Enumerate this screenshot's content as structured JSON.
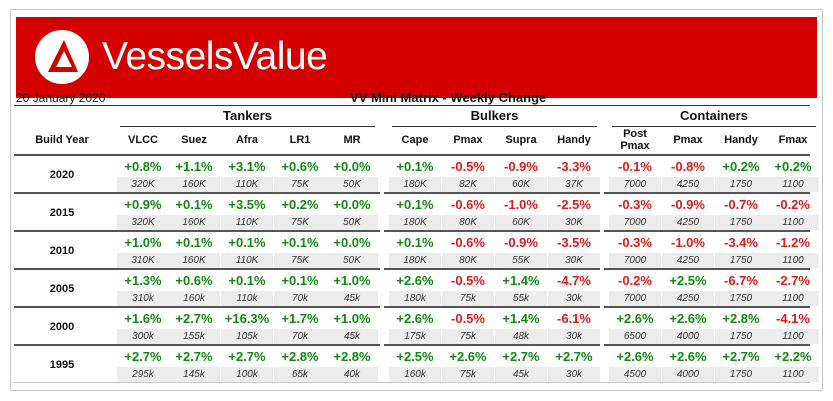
{
  "brand": "VesselsValue",
  "date": "20 January 2020",
  "title": "VV Mini Matrix - Weekly Change",
  "row_header": "Build Year",
  "groups": [
    {
      "label": "Tankers",
      "columns": [
        "VLCC",
        "Suez",
        "Afra",
        "LR1",
        "MR"
      ]
    },
    {
      "label": "Bulkers",
      "columns": [
        "Cape",
        "Pmax",
        "Supra",
        "Handy"
      ]
    },
    {
      "label": "Containers",
      "columns": [
        "Post Pmax",
        "Pmax",
        "Handy",
        "Fmax"
      ]
    }
  ],
  "rows": [
    {
      "year": "2020",
      "changes": [
        "+0.8%",
        "+1.1%",
        "+3.1%",
        "+0.6%",
        "+0.0%",
        "+0.1%",
        "-0.5%",
        "-0.9%",
        "-3.3%",
        "-0.1%",
        "-0.8%",
        "+0.2%",
        "+0.2%"
      ],
      "sizes": [
        "320K",
        "160K",
        "110K",
        "75K",
        "50K",
        "180K",
        "82K",
        "60K",
        "37K",
        "7000",
        "4250",
        "1750",
        "1100"
      ]
    },
    {
      "year": "2015",
      "changes": [
        "+0.9%",
        "+0.1%",
        "+3.5%",
        "+0.2%",
        "+0.0%",
        "+0.1%",
        "-0.6%",
        "-1.0%",
        "-2.5%",
        "-0.3%",
        "-0.9%",
        "-0.7%",
        "-0.2%"
      ],
      "sizes": [
        "320K",
        "160K",
        "110K",
        "75K",
        "50K",
        "180K",
        "80K",
        "60K",
        "30K",
        "7000",
        "4250",
        "1750",
        "1100"
      ]
    },
    {
      "year": "2010",
      "changes": [
        "+1.0%",
        "+0.1%",
        "+0.1%",
        "+0.1%",
        "+0.0%",
        "+0.1%",
        "-0.6%",
        "-0.9%",
        "-3.5%",
        "-0.3%",
        "-1.0%",
        "-3.4%",
        "-1.2%"
      ],
      "sizes": [
        "310K",
        "160K",
        "110K",
        "75K",
        "50K",
        "180K",
        "80K",
        "55K",
        "30K",
        "7000",
        "4250",
        "1750",
        "1100"
      ]
    },
    {
      "year": "2005",
      "changes": [
        "+1.3%",
        "+0.6%",
        "+0.1%",
        "+0.1%",
        "+1.0%",
        "+2.6%",
        "-0.5%",
        "+1.4%",
        "-4.7%",
        "-0.2%",
        "+2.5%",
        "-6.7%",
        "-2.7%"
      ],
      "sizes": [
        "310k",
        "160k",
        "110k",
        "70k",
        "45k",
        "180k",
        "75k",
        "55k",
        "30k",
        "7000",
        "4250",
        "1750",
        "1100"
      ]
    },
    {
      "year": "2000",
      "changes": [
        "+1.6%",
        "+2.7%",
        "+16.3%",
        "+1.7%",
        "+1.0%",
        "+2.6%",
        "-0.5%",
        "+1.4%",
        "-6.1%",
        "+2.6%",
        "+2.6%",
        "+2.8%",
        "-4.1%"
      ],
      "sizes": [
        "300k",
        "155k",
        "105k",
        "70k",
        "45k",
        "175k",
        "75k",
        "48k",
        "30k",
        "6500",
        "4000",
        "1750",
        "1100"
      ]
    },
    {
      "year": "1995",
      "changes": [
        "+2.7%",
        "+2.7%",
        "+2.7%",
        "+2.8%",
        "+2.8%",
        "+2.5%",
        "+2.6%",
        "+2.7%",
        "+2.7%",
        "+2.6%",
        "+2.6%",
        "+2.7%",
        "+2.2%"
      ],
      "sizes": [
        "295k",
        "145k",
        "100k",
        "65k",
        "40k",
        "160k",
        "75k",
        "45k",
        "30k",
        "4500",
        "4000",
        "1750",
        "1100"
      ]
    }
  ],
  "colors": {
    "banner": "#d40000",
    "positive": "#118a11",
    "negative": "#e01a1a"
  },
  "icons": {
    "logo": "vesselsvalue-logo-icon"
  }
}
